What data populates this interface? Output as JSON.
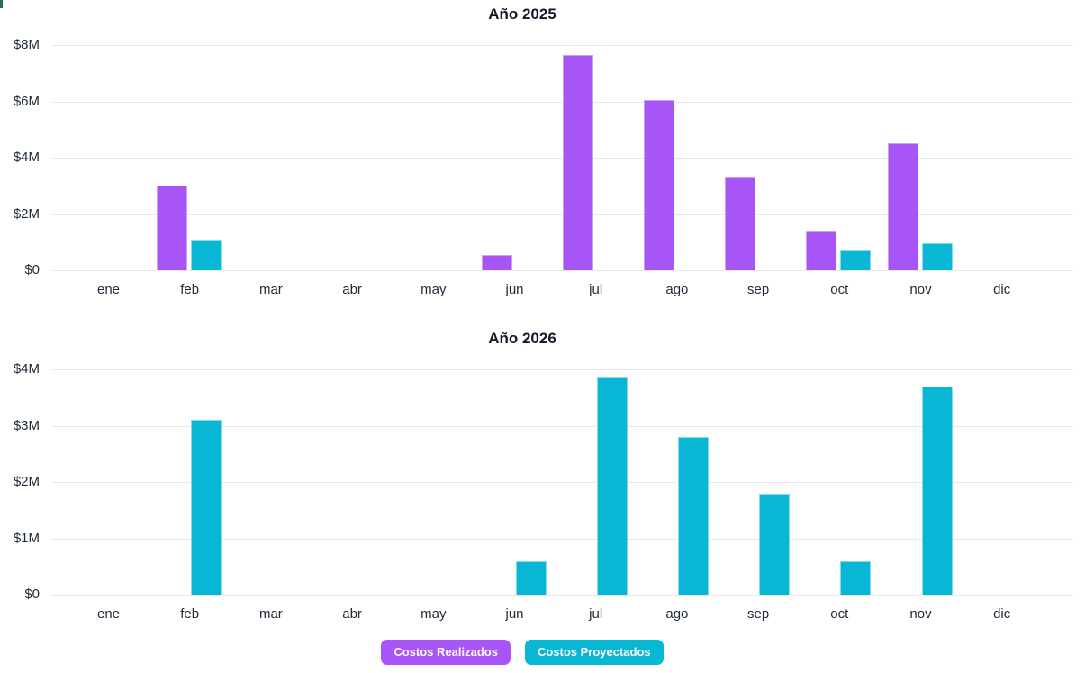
{
  "page": {
    "background": "#ffffff"
  },
  "colors": {
    "realizados": "#a855f7",
    "realizados_border": "#c9a0f9",
    "proyectados": "#08b7d4",
    "proyectados_border": "#8adbea",
    "grid": "#e8e8e8",
    "tick_text": "#1f2937",
    "title_text": "#111827"
  },
  "legend": {
    "items": [
      {
        "label": "Costos Realizados",
        "color": "#a855f7"
      },
      {
        "label": "Costos Proyectados",
        "color": "#08b7d4"
      }
    ]
  },
  "chart_data": [
    {
      "type": "bar",
      "title": "Año 2025",
      "unit": "millions USD",
      "categories": [
        "ene",
        "feb",
        "mar",
        "abr",
        "may",
        "jun",
        "jul",
        "ago",
        "sep",
        "oct",
        "nov",
        "dic"
      ],
      "series": [
        {
          "name": "Costos Realizados",
          "color": "#a855f7",
          "border": "#c9a0f9",
          "values": [
            0,
            3.0,
            0,
            0,
            0,
            0.55,
            7.65,
            6.05,
            3.3,
            1.4,
            4.5,
            0
          ]
        },
        {
          "name": "Costos Proyectados",
          "color": "#08b7d4",
          "border": "#8adbea",
          "values": [
            0,
            1.1,
            0,
            0,
            0,
            0,
            0,
            0,
            0,
            0.7,
            0.95,
            0
          ]
        }
      ],
      "yticks": [
        {
          "label": "$0",
          "value": 0
        },
        {
          "label": "$2M",
          "value": 2
        },
        {
          "label": "$4M",
          "value": 4
        },
        {
          "label": "$6M",
          "value": 6
        },
        {
          "label": "$8M",
          "value": 8
        }
      ],
      "ylim": [
        0,
        8
      ],
      "grid": true,
      "legend_position": "bottom-shared"
    },
    {
      "type": "bar",
      "title": "Año 2026",
      "unit": "millions USD",
      "categories": [
        "ene",
        "feb",
        "mar",
        "abr",
        "may",
        "jun",
        "jul",
        "ago",
        "sep",
        "oct",
        "nov",
        "dic"
      ],
      "series": [
        {
          "name": "Costos Realizados",
          "color": "#a855f7",
          "border": "#c9a0f9",
          "values": [
            0,
            0,
            0,
            0,
            0,
            0,
            0,
            0,
            0,
            0,
            0,
            0
          ]
        },
        {
          "name": "Costos Proyectados",
          "color": "#08b7d4",
          "border": "#8adbea",
          "values": [
            0,
            3.1,
            0,
            0,
            0,
            0.6,
            3.85,
            2.8,
            1.8,
            0.6,
            3.7,
            0
          ]
        }
      ],
      "yticks": [
        {
          "label": "$0",
          "value": 0
        },
        {
          "label": "$1M",
          "value": 1
        },
        {
          "label": "$2M",
          "value": 2
        },
        {
          "label": "$3M",
          "value": 3
        },
        {
          "label": "$4M",
          "value": 4
        }
      ],
      "ylim": [
        0,
        4
      ],
      "grid": true,
      "legend_position": "bottom-shared"
    }
  ]
}
